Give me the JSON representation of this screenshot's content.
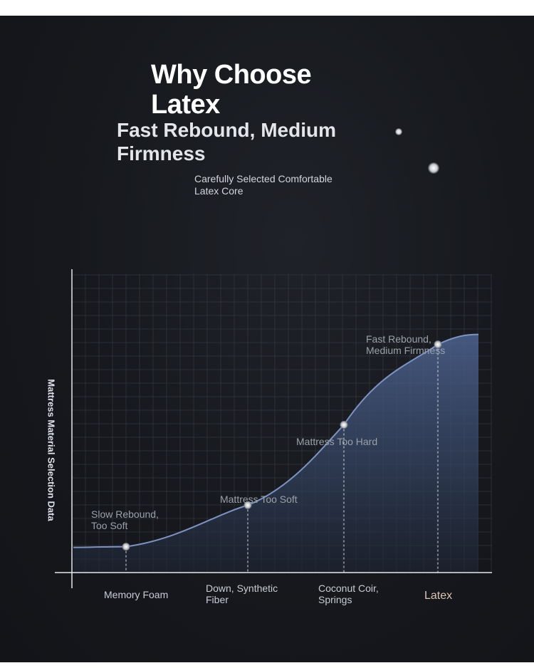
{
  "header": {
    "title": "Why Choose Latex",
    "subtitle": "Fast Rebound, Medium Firmness",
    "caption": "Carefully Selected Comfortable Latex Core"
  },
  "colors": {
    "background": "#16181d",
    "curve": "#7d93c2",
    "fill": "#3a4c72",
    "grid": "#3a3e46",
    "highlight_label": "#d8c7b0"
  },
  "chart_data": {
    "type": "area",
    "title": "Why Choose Latex",
    "ylabel": "Mattress Material Selection Data",
    "xlabel": "",
    "categories": [
      "Memory Foam",
      "Down, Synthetic Fiber",
      "Coconut Coir, Springs",
      "Latex"
    ],
    "highlight_category": "Latex",
    "y_ticks_shown": false,
    "grid": true,
    "series": [
      {
        "values": [
          1.0,
          2.6,
          5.7,
          8.8
        ],
        "annotations": [
          "Slow Rebound, Too Soft",
          "Mattress Too Soft",
          "Mattress Too Hard",
          "Fast Rebound, Medium Firmness"
        ]
      }
    ]
  }
}
